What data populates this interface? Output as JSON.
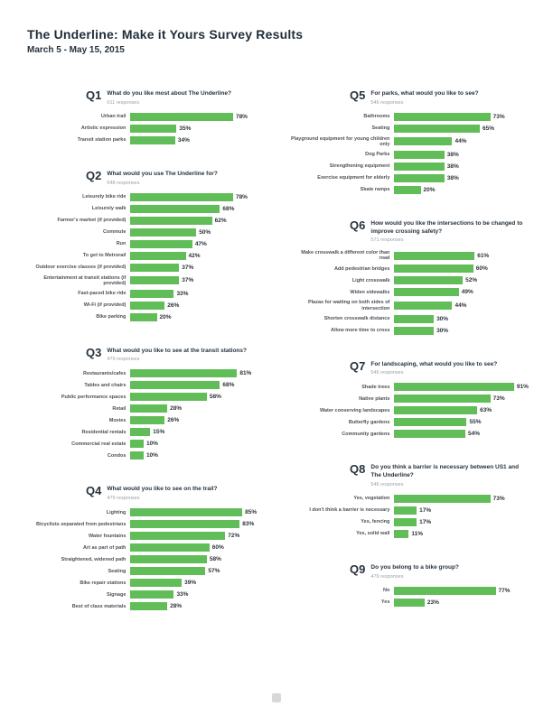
{
  "header": {
    "title": "The Underline: Make it Yours Survey Results",
    "date": "March 5 - May 15, 2015"
  },
  "colors": {
    "bar": "#61bd58",
    "title_text": "#1f2d3a",
    "value_text": "#2d333a"
  },
  "unit": "%",
  "chart_data": [
    {
      "id": "Q1",
      "type": "bar",
      "column": "left",
      "title": "What do you like most about The Underline?",
      "responses": "611 responses",
      "categories": [
        "Urban trail",
        "Artistic expression",
        "Transit station parks"
      ],
      "values": [
        78,
        35,
        34
      ],
      "xlim": [
        0,
        100
      ],
      "orientation": "horizontal",
      "grid": false,
      "legend": false
    },
    {
      "id": "Q2",
      "type": "bar",
      "column": "left",
      "title": "What would you use The Underline for?",
      "responses": "548 responses",
      "categories": [
        "Leisurely bike ride",
        "Leisurely walk",
        "Farmer's market (if provided)",
        "Commute",
        "Run",
        "To get to Metrorail",
        "Outdoor exercise classes (if provided)",
        "Entertainment at transit stations (if provided)",
        "Fast-paced bike ride",
        "Wi-Fi (if provided)",
        "Bike parking"
      ],
      "values": [
        78,
        68,
        62,
        50,
        47,
        42,
        37,
        37,
        33,
        26,
        20
      ],
      "xlim": [
        0,
        100
      ],
      "orientation": "horizontal",
      "grid": false,
      "legend": false
    },
    {
      "id": "Q3",
      "type": "bar",
      "column": "left",
      "title": "What would you like to see at the transit stations?",
      "responses": "479 responses",
      "categories": [
        "Restaurants/cafes",
        "Tables and chairs",
        "Public performance spaces",
        "Retail",
        "Movies",
        "Residential rentals",
        "Commercial real estate",
        "Condos"
      ],
      "values": [
        81,
        68,
        58,
        28,
        26,
        15,
        10,
        10
      ],
      "xlim": [
        0,
        100
      ],
      "orientation": "horizontal",
      "grid": false,
      "legend": false
    },
    {
      "id": "Q4",
      "type": "bar",
      "column": "left",
      "title": "What would you like to see on the trail?",
      "responses": "479 responses",
      "categories": [
        "Lighting",
        "Bicyclists separated from pedestrians",
        "Water fountains",
        "Art as part of path",
        "Straightened, widened path",
        "Seating",
        "Bike repair stations",
        "Signage",
        "Best of class materials"
      ],
      "values": [
        85,
        83,
        72,
        60,
        58,
        57,
        39,
        33,
        28
      ],
      "xlim": [
        0,
        100
      ],
      "orientation": "horizontal",
      "grid": false,
      "legend": false
    },
    {
      "id": "Q5",
      "type": "bar",
      "column": "right",
      "title": "For parks, what would you like to see?",
      "responses": "546 responses",
      "categories": [
        "Bathrooms",
        "Seating",
        "Playground equipment for young children only",
        "Dog Parks",
        "Strengthening equipment",
        "Exercise equipment for elderly",
        "Skate ramps"
      ],
      "values": [
        73,
        65,
        44,
        38,
        38,
        38,
        20
      ],
      "xlim": [
        0,
        100
      ],
      "orientation": "horizontal",
      "grid": false,
      "legend": false
    },
    {
      "id": "Q6",
      "type": "bar",
      "column": "right",
      "title": "How would you like the intersections to be changed to improve crossing safety?",
      "responses": "571 responses",
      "categories": [
        "Make crosswalk a different color than road",
        "Add pedestrian bridges",
        "Light crosswalk",
        "Widen sidewalks",
        "Plazas for waiting on both sides of intersection",
        "Shorten crosswalk distance",
        "Allow more time to cross"
      ],
      "values": [
        61,
        60,
        52,
        49,
        44,
        30,
        30
      ],
      "xlim": [
        0,
        100
      ],
      "orientation": "horizontal",
      "grid": false,
      "legend": false
    },
    {
      "id": "Q7",
      "type": "bar",
      "column": "right",
      "title": "For landscaping, what would you like to see?",
      "responses": "546 responses",
      "categories": [
        "Shade trees",
        "Native plants",
        "Water conserving landscapes",
        "Butterfly gardens",
        "Community gardens"
      ],
      "values": [
        91,
        73,
        63,
        55,
        54
      ],
      "xlim": [
        0,
        100
      ],
      "orientation": "horizontal",
      "grid": false,
      "legend": false
    },
    {
      "id": "Q8",
      "type": "bar",
      "column": "right",
      "title": "Do you think a barrier is necessary between US1 and The Underline?",
      "responses": "546 responses",
      "categories": [
        "Yes, vegetation",
        "I don't think a barrier is necessary",
        "Yes, fencing",
        "Yes, solid wall"
      ],
      "values": [
        73,
        17,
        17,
        11
      ],
      "xlim": [
        0,
        100
      ],
      "orientation": "horizontal",
      "grid": false,
      "legend": false
    },
    {
      "id": "Q9",
      "type": "bar",
      "column": "right",
      "title": "Do you belong to a bike group?",
      "responses": "479 responses",
      "categories": [
        "No",
        "Yes"
      ],
      "values": [
        77,
        23
      ],
      "xlim": [
        0,
        100
      ],
      "orientation": "horizontal",
      "grid": false,
      "legend": false
    }
  ]
}
